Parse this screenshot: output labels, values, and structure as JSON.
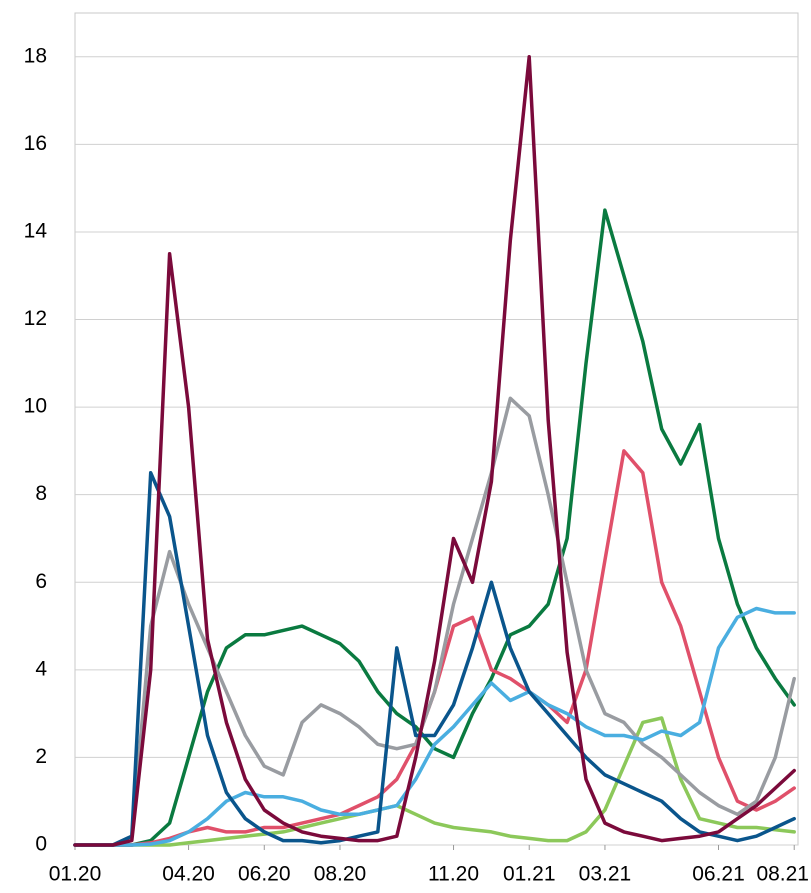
{
  "chart_data": {
    "type": "line",
    "x": [
      0,
      0.5,
      1,
      1.5,
      2,
      2.5,
      3,
      3.5,
      4,
      4.5,
      5,
      5.5,
      6,
      6.5,
      7,
      7.5,
      8,
      8.5,
      9,
      9.5,
      10,
      10.5,
      11,
      11.5,
      12,
      12.5,
      13,
      13.5,
      14,
      14.5,
      15,
      15.5,
      16,
      16.5,
      17,
      17.5,
      18,
      18.5,
      19
    ],
    "xlim": [
      0,
      19.1
    ],
    "xticks": [
      {
        "value": 0,
        "label": "01.20"
      },
      {
        "value": 3,
        "label": "04.20"
      },
      {
        "value": 5,
        "label": "06.20"
      },
      {
        "value": 7,
        "label": "08.20"
      },
      {
        "value": 10,
        "label": "11.20"
      },
      {
        "value": 12,
        "label": "01.21"
      },
      {
        "value": 14,
        "label": "03.21"
      },
      {
        "value": 17,
        "label": "06.21"
      },
      {
        "value": 19,
        "label": "08.21"
      }
    ],
    "ylim": [
      0,
      19
    ],
    "yticks": [
      0,
      2,
      4,
      6,
      8,
      10,
      12,
      14,
      16,
      18
    ],
    "grid": true,
    "series": [
      {
        "color": "#8cc85a",
        "values": [
          0,
          0,
          0,
          0,
          0,
          0,
          0.05,
          0.1,
          0.15,
          0.2,
          0.25,
          0.3,
          0.4,
          0.5,
          0.6,
          0.7,
          0.8,
          0.9,
          0.7,
          0.5,
          0.4,
          0.35,
          0.3,
          0.2,
          0.15,
          0.1,
          0.1,
          0.3,
          0.8,
          1.8,
          2.8,
          2.9,
          1.5,
          0.6,
          0.5,
          0.4,
          0.4,
          0.35,
          0.3
        ]
      },
      {
        "color": "#0a7a40",
        "values": [
          0,
          0,
          0,
          0,
          0.1,
          0.5,
          2,
          3.5,
          4.5,
          4.8,
          4.8,
          4.9,
          5,
          4.8,
          4.6,
          4.2,
          3.5,
          3,
          2.7,
          2.2,
          2,
          3,
          3.8,
          4.8,
          5,
          5.5,
          7,
          11,
          14.5,
          13,
          11.5,
          9.5,
          8.7,
          9.6,
          7,
          5.5,
          4.5,
          3.8,
          3.2
        ]
      },
      {
        "color": "#e0506a",
        "values": [
          0,
          0,
          0,
          0,
          0.05,
          0.15,
          0.3,
          0.4,
          0.3,
          0.3,
          0.4,
          0.4,
          0.5,
          0.6,
          0.7,
          0.9,
          1.1,
          1.5,
          2.3,
          3.5,
          5,
          5.2,
          4,
          3.8,
          3.5,
          3.2,
          2.8,
          4,
          6.5,
          9,
          8.5,
          6,
          5,
          3.5,
          2,
          1,
          0.8,
          1,
          1.3
        ]
      },
      {
        "color": "#999ca1",
        "values": [
          0,
          0,
          0,
          0.2,
          5,
          6.7,
          5.5,
          4.5,
          3.5,
          2.5,
          1.8,
          1.6,
          2.8,
          3.2,
          3,
          2.7,
          2.3,
          2.2,
          2.3,
          3.5,
          5.5,
          7,
          8.5,
          10.2,
          9.8,
          8,
          6,
          4,
          3,
          2.8,
          2.3,
          2,
          1.6,
          1.2,
          0.9,
          0.7,
          1,
          2,
          3.8
        ]
      },
      {
        "color": "#4aaee0",
        "values": [
          0,
          0,
          0,
          0,
          0.02,
          0.1,
          0.3,
          0.6,
          1,
          1.2,
          1.1,
          1.1,
          1,
          0.8,
          0.7,
          0.7,
          0.8,
          0.9,
          1.5,
          2.3,
          2.7,
          3.2,
          3.7,
          3.3,
          3.5,
          3.2,
          3,
          2.7,
          2.5,
          2.5,
          2.4,
          2.6,
          2.5,
          2.8,
          4.5,
          5.2,
          5.4,
          5.3,
          5.3
        ]
      },
      {
        "color": "#0a558c",
        "values": [
          0,
          0,
          0,
          0.2,
          8.5,
          7.5,
          5,
          2.5,
          1.2,
          0.6,
          0.3,
          0.1,
          0.1,
          0.05,
          0.1,
          0.2,
          0.3,
          4.5,
          2.5,
          2.5,
          3.2,
          4.5,
          6,
          4.5,
          3.5,
          3,
          2.5,
          2,
          1.6,
          1.4,
          1.2,
          1,
          0.6,
          0.3,
          0.2,
          0.1,
          0.2,
          0.4,
          0.6
        ]
      },
      {
        "color": "#7b0a3b",
        "values": [
          0,
          0,
          0,
          0.1,
          4,
          13.5,
          10,
          4.7,
          2.8,
          1.5,
          0.8,
          0.5,
          0.3,
          0.2,
          0.15,
          0.1,
          0.1,
          0.2,
          2,
          4.2,
          7,
          6,
          8.3,
          13.8,
          18,
          9.7,
          4.4,
          1.5,
          0.5,
          0.3,
          0.2,
          0.1,
          0.15,
          0.2,
          0.3,
          0.6,
          0.9,
          1.3,
          1.7
        ]
      }
    ]
  }
}
